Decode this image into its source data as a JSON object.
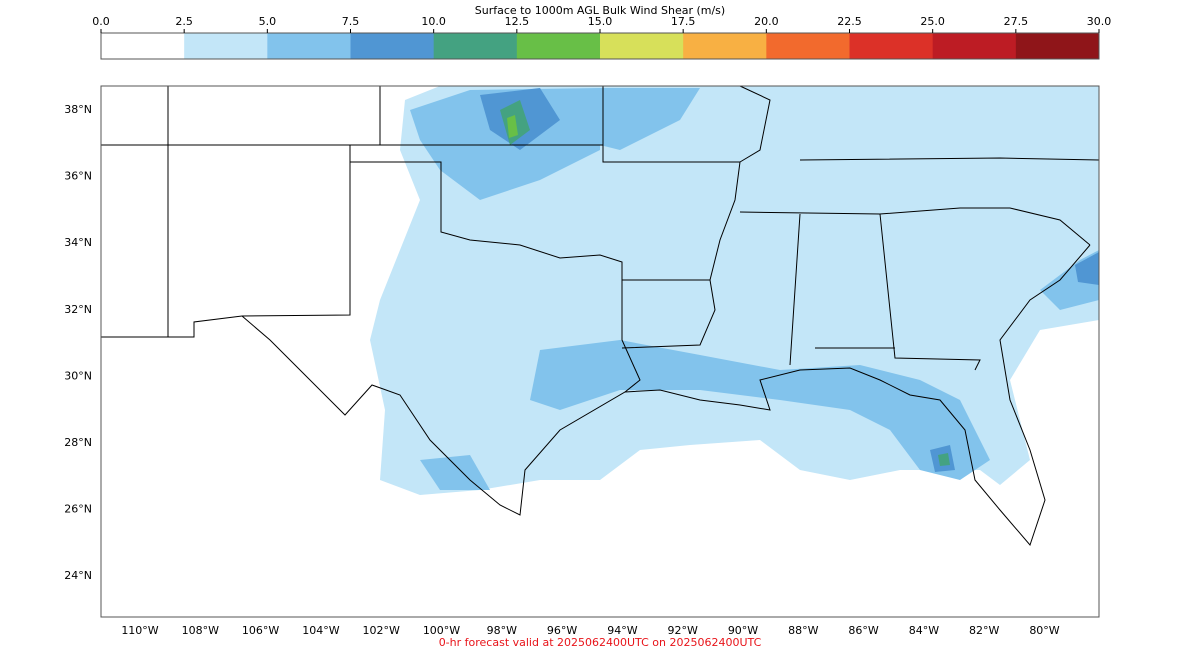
{
  "colorbar": {
    "title": "Surface to 1000m AGL Bulk Wind Shear (m/s)",
    "lim": [
      0,
      30
    ],
    "ticks": [
      {
        "value": 0,
        "label": "0.0"
      },
      2.5,
      {
        "value": 5,
        "label": "5.0"
      },
      7.5,
      {
        "value": 10,
        "label": "10.0"
      },
      12.5,
      {
        "value": 15,
        "label": "15.0"
      },
      17.5,
      {
        "value": 20,
        "label": "20.0"
      },
      22.5,
      {
        "value": 25,
        "label": "25.0"
      },
      27.5,
      {
        "value": 30,
        "label": "30.0"
      }
    ],
    "colors": [
      "#ffffff",
      "#c3e6f8",
      "#82c3ec",
      "#5096d3",
      "#44a281",
      "#68bf47",
      "#d7e05a",
      "#f8b043",
      "#f26a2d",
      "#dc3128",
      "#bd1c24",
      "#8f1519"
    ]
  },
  "map": {
    "lat_labels": [
      "38°N",
      "36°N",
      "34°N",
      "32°N",
      "30°N",
      "28°N",
      "26°N",
      "24°N"
    ],
    "lon_labels": [
      "110°W",
      "108°W",
      "106°W",
      "104°W",
      "102°W",
      "100°W",
      "98°W",
      "96°W",
      "94°W",
      "92°W",
      "90°W",
      "88°W",
      "86°W",
      "84°W",
      "82°W",
      "80°W"
    ]
  },
  "footer": "0-hr forecast valid at 2025062400UTC on 2025062400UTC"
}
